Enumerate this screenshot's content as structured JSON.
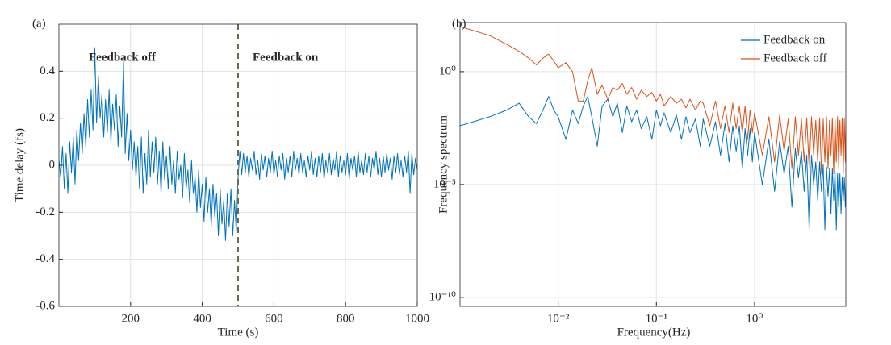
{
  "chart_data": [
    {
      "type": "line",
      "panel_label": "(a)",
      "x_label": "Time (s)",
      "y_label": "Time delay (fs)",
      "xlim": [
        0,
        1000
      ],
      "ylim": [
        -0.6,
        0.6
      ],
      "xticks": [
        200,
        400,
        600,
        800,
        1000
      ],
      "yticks": [
        -0.6,
        -0.4,
        -0.2,
        0,
        0.2,
        0.4
      ],
      "grid": true,
      "x": [
        0,
        5,
        10,
        15,
        20,
        25,
        30,
        35,
        40,
        45,
        50,
        55,
        60,
        65,
        70,
        75,
        80,
        85,
        90,
        95,
        100,
        105,
        110,
        115,
        120,
        125,
        130,
        135,
        140,
        145,
        150,
        155,
        160,
        165,
        170,
        175,
        180,
        185,
        190,
        195,
        200,
        205,
        210,
        215,
        220,
        225,
        230,
        235,
        240,
        245,
        250,
        255,
        260,
        265,
        270,
        275,
        280,
        285,
        290,
        295,
        300,
        305,
        310,
        315,
        320,
        325,
        330,
        335,
        340,
        345,
        350,
        355,
        360,
        365,
        370,
        375,
        380,
        385,
        390,
        395,
        400,
        405,
        410,
        415,
        420,
        425,
        430,
        435,
        440,
        445,
        450,
        455,
        460,
        465,
        470,
        475,
        480,
        485,
        490,
        495,
        500,
        505,
        510,
        515,
        520,
        525,
        530,
        535,
        540,
        545,
        550,
        555,
        560,
        565,
        570,
        575,
        580,
        585,
        590,
        595,
        600,
        605,
        610,
        615,
        620,
        625,
        630,
        635,
        640,
        645,
        650,
        655,
        660,
        665,
        670,
        675,
        680,
        685,
        690,
        695,
        700,
        705,
        710,
        715,
        720,
        725,
        730,
        735,
        740,
        745,
        750,
        755,
        760,
        765,
        770,
        775,
        780,
        785,
        790,
        795,
        800,
        805,
        810,
        815,
        820,
        825,
        830,
        835,
        840,
        845,
        850,
        855,
        860,
        865,
        870,
        875,
        880,
        885,
        890,
        895,
        900,
        905,
        910,
        915,
        920,
        925,
        930,
        935,
        940,
        945,
        950,
        955,
        960,
        965,
        970,
        975,
        980,
        985,
        990,
        995,
        1000
      ],
      "series": [
        {
          "color": "#0072bd",
          "values": [
            0.02,
            -0.05,
            0.08,
            -0.1,
            0.05,
            -0.12,
            0.1,
            -0.03,
            0.12,
            -0.08,
            0.15,
            0.02,
            0.18,
            0.05,
            0.22,
            0.08,
            0.28,
            0.12,
            0.32,
            0.15,
            0.5,
            0.18,
            0.38,
            0.2,
            0.3,
            0.12,
            0.28,
            0.14,
            0.32,
            0.1,
            0.26,
            0.15,
            0.3,
            0.08,
            0.25,
            0.12,
            0.44,
            0.05,
            0.22,
            0.02,
            0.15,
            -0.02,
            0.1,
            -0.05,
            0.08,
            -0.1,
            0.12,
            -0.12,
            0.05,
            -0.08,
            0.15,
            -0.05,
            0.1,
            -0.03,
            0.12,
            -0.08,
            0.06,
            -0.12,
            0.1,
            -0.06,
            0.04,
            -0.1,
            0.08,
            -0.08,
            0.02,
            -0.12,
            0.06,
            -0.06,
            0.0,
            -0.14,
            0.05,
            -0.1,
            -0.02,
            -0.16,
            0.02,
            -0.12,
            -0.05,
            -0.2,
            -0.02,
            -0.18,
            -0.08,
            -0.24,
            -0.05,
            -0.2,
            -0.1,
            -0.26,
            -0.08,
            -0.22,
            -0.12,
            -0.3,
            -0.1,
            -0.25,
            -0.15,
            -0.32,
            -0.12,
            -0.26,
            -0.1,
            -0.3,
            -0.15,
            -0.28,
            -0.05,
            0.06,
            -0.04,
            0.05,
            -0.03,
            0.04,
            -0.05,
            0.03,
            -0.02,
            0.06,
            -0.04,
            0.02,
            -0.06,
            0.05,
            -0.02,
            0.04,
            -0.05,
            0.03,
            -0.03,
            0.06,
            -0.04,
            0.02,
            -0.05,
            0.04,
            -0.02,
            0.05,
            -0.06,
            0.03,
            -0.03,
            0.04,
            -0.05,
            0.06,
            -0.02,
            0.03,
            -0.04,
            0.05,
            -0.03,
            0.02,
            -0.05,
            0.04,
            -0.02,
            0.06,
            -0.04,
            0.03,
            -0.05,
            0.04,
            -0.03,
            0.05,
            -0.06,
            0.02,
            -0.03,
            0.05,
            -0.04,
            0.03,
            -0.02,
            0.06,
            -0.05,
            0.04,
            -0.03,
            0.02,
            -0.04,
            0.05,
            -0.06,
            0.03,
            -0.02,
            0.04,
            -0.05,
            0.06,
            -0.03,
            0.02,
            -0.04,
            0.05,
            -0.03,
            0.04,
            -0.05,
            0.03,
            -0.02,
            0.06,
            -0.04,
            0.03,
            -0.05,
            0.04,
            -0.03,
            0.05,
            -0.02,
            0.03,
            -0.06,
            0.04,
            -0.03,
            0.05,
            -0.04,
            0.02,
            -0.05,
            0.04,
            -0.03,
            0.06,
            -0.12,
            0.05,
            -0.04,
            0.03,
            -0.02
          ]
        }
      ],
      "vline": {
        "x": 500,
        "color": "#6b6b4f"
      },
      "annotations": [
        {
          "text": "Feedback off",
          "color": "#9b1b3a"
        },
        {
          "text": "Feedback on",
          "color": "#9b1b3a"
        }
      ]
    },
    {
      "type": "line",
      "panel_label": "(b)",
      "x_label": "Frequency(Hz)",
      "y_label": "Frequency spectrum",
      "xscale": "log",
      "yscale": "log",
      "xlim": [
        0.001,
        8.5
      ],
      "ylim": [
        4e-11,
        150
      ],
      "xticks": [
        {
          "value": 0.01,
          "label": "10⁻²"
        },
        {
          "value": 0.1,
          "label": "10⁻¹"
        },
        {
          "value": 1,
          "label": "10⁰"
        }
      ],
      "yticks": [
        {
          "value": 1e-10,
          "label": "10⁻¹⁰"
        },
        {
          "value": 1e-05,
          "label": "10⁻⁵"
        },
        {
          "value": 1,
          "label": "10⁰"
        }
      ],
      "grid": true,
      "legend": "upper right",
      "x": [
        0.001,
        0.002,
        0.003,
        0.004,
        0.005,
        0.006,
        0.007,
        0.008,
        0.009,
        0.01,
        0.012,
        0.014,
        0.016,
        0.018,
        0.02,
        0.022,
        0.025,
        0.028,
        0.032,
        0.036,
        0.04,
        0.045,
        0.05,
        0.056,
        0.063,
        0.07,
        0.08,
        0.09,
        0.1,
        0.11,
        0.12,
        0.14,
        0.16,
        0.18,
        0.2,
        0.22,
        0.25,
        0.28,
        0.3,
        0.35,
        0.4,
        0.45,
        0.5,
        0.55,
        0.6,
        0.65,
        0.7,
        0.75,
        0.8,
        0.85,
        0.9,
        0.95,
        1.0,
        1.2,
        1.4,
        1.6,
        1.8,
        2.0,
        2.2,
        2.4,
        2.6,
        2.8,
        3.0,
        3.2,
        3.4,
        3.6,
        3.8,
        4.0,
        4.2,
        4.4,
        4.6,
        4.8,
        5.0,
        5.2,
        5.4,
        5.6,
        5.8,
        6.0,
        6.2,
        6.4,
        6.6,
        6.8,
        7.0,
        7.2,
        7.4,
        7.6,
        7.8,
        8.0,
        8.2,
        8.4,
        8.5
      ],
      "series": [
        {
          "name": "Feedback on",
          "color": "#0072bd",
          "values": [
            0.004,
            0.01,
            0.02,
            0.04,
            0.01,
            0.005,
            0.02,
            0.08,
            0.02,
            0.01,
            0.001,
            0.02,
            0.005,
            0.03,
            0.08,
            0.01,
            0.0005,
            0.03,
            0.06,
            0.01,
            0.04,
            0.002,
            0.03,
            0.006,
            0.02,
            0.003,
            0.01,
            0.001,
            0.02,
            0.004,
            0.015,
            0.002,
            0.012,
            0.001,
            0.01,
            0.002,
            0.008,
            0.0005,
            0.008,
            0.0005,
            0.006,
            0.0002,
            0.005,
            0.0001,
            0.004,
            0.0003,
            0.004,
            5e-05,
            0.003,
            0.0002,
            0.003,
            0.0001,
            0.002,
            1e-05,
            0.001,
            5e-06,
            0.0008,
            3e-05,
            0.0005,
            1e-06,
            0.0004,
            2e-05,
            0.0003,
            5e-06,
            0.0002,
            1e-07,
            0.0002,
            1e-05,
            0.0001,
            2e-06,
            0.0001,
            5e-06,
            8e-05,
            1e-07,
            6e-05,
            3e-06,
            5e-05,
            5e-07,
            5e-05,
            2e-06,
            4e-05,
            1e-07,
            3e-05,
            1e-06,
            3e-05,
            5e-07,
            2e-05,
            2e-06,
            2e-05,
            1e-06,
            1e-05
          ]
        },
        {
          "name": "Feedback off",
          "color": "#d95319",
          "values": [
            100,
            40,
            16,
            8,
            4,
            2,
            4,
            6,
            3,
            1.5,
            2.5,
            1,
            0.05,
            0.05,
            0.4,
            1.5,
            0.1,
            0.25,
            0.06,
            0.2,
            0.15,
            0.3,
            0.1,
            0.2,
            0.06,
            0.15,
            0.08,
            0.12,
            0.05,
            0.1,
            0.03,
            0.08,
            0.04,
            0.06,
            0.025,
            0.06,
            0.02,
            0.05,
            0.04,
            0.004,
            0.05,
            0.003,
            0.03,
            0.002,
            0.04,
            0.003,
            0.03,
            0.002,
            0.03,
            0.001,
            0.02,
            0.002,
            0.015,
            0.0002,
            0.01,
            0.0001,
            0.012,
            0.0003,
            0.008,
            5e-05,
            0.01,
            0.0002,
            0.008,
            0.0001,
            0.009,
            5e-05,
            0.01,
            0.0002,
            0.007,
            0.0001,
            0.009,
            3e-05,
            0.008,
            0.0001,
            0.01,
            5e-05,
            0.007,
            0.0002,
            0.009,
            3e-05,
            0.008,
            0.0001,
            0.01,
            5e-05,
            0.007,
            0.0002,
            0.009,
            3e-05,
            0.008,
            0.0001,
            0.006
          ]
        }
      ]
    }
  ]
}
